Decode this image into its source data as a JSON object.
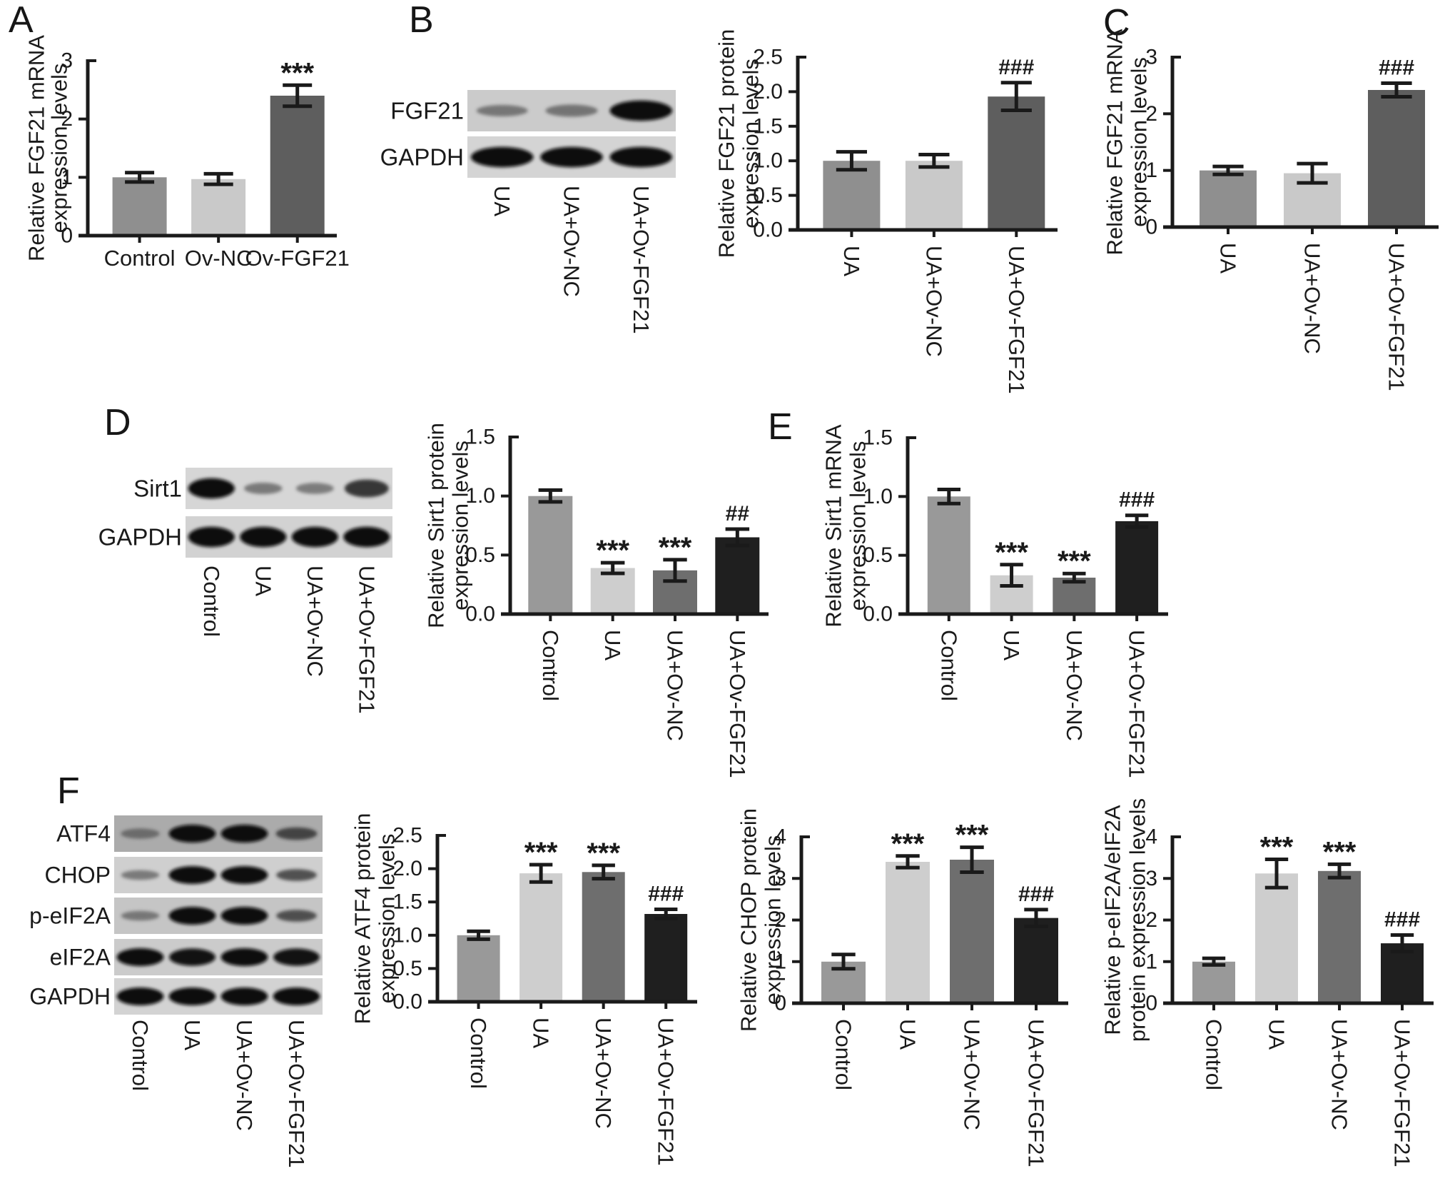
{
  "figure": {
    "background": "#ffffff",
    "ink_color": "#1a1a1a",
    "panels": [
      {
        "id": "A",
        "label": "A"
      },
      {
        "id": "B",
        "label": "B"
      },
      {
        "id": "C",
        "label": "C"
      },
      {
        "id": "D",
        "label": "D"
      },
      {
        "id": "E",
        "label": "E"
      },
      {
        "id": "F",
        "label": "F"
      }
    ]
  },
  "blots": [
    {
      "id": "blot-b",
      "panel": "B",
      "lanes": [
        "UA",
        "UA+Ov-NC",
        "UA+Ov-FGF21"
      ],
      "rows": [
        {
          "label": "FGF21",
          "bg": "#cbcbcb",
          "bands": [
            0.33,
            0.38,
            1.0
          ]
        },
        {
          "label": "GAPDH",
          "bg": "#d4d4d4",
          "bands": [
            1.0,
            1.0,
            1.0
          ]
        }
      ]
    },
    {
      "id": "blot-d",
      "panel": "D",
      "lanes": [
        "Control",
        "UA",
        "UA+Ov-NC",
        "UA+Ov-FGF21"
      ],
      "rows": [
        {
          "label": "Sirt1",
          "bg": "#d6d6d6",
          "bands": [
            1.0,
            0.33,
            0.3,
            0.8
          ]
        },
        {
          "label": "GAPDH",
          "bg": "#d2d2d2",
          "bands": [
            1.0,
            1.0,
            1.0,
            1.0
          ]
        }
      ]
    },
    {
      "id": "blot-f",
      "panel": "F",
      "lanes": [
        "Control",
        "UA",
        "UA+Ov-NC",
        "UA+Ov-FGF21"
      ],
      "rows": [
        {
          "label": "ATF4",
          "bg": "#ababab",
          "bands": [
            0.35,
            1.0,
            1.0,
            0.55
          ]
        },
        {
          "label": "CHOP",
          "bg": "#cfcfcf",
          "bands": [
            0.3,
            1.0,
            1.0,
            0.48
          ]
        },
        {
          "label": "p-eIF2A",
          "bg": "#c5c5c5",
          "bands": [
            0.3,
            1.0,
            1.0,
            0.48
          ]
        },
        {
          "label": "eIF2A",
          "bg": "#cbcbcb",
          "bands": [
            1.0,
            0.95,
            1.0,
            0.95
          ]
        },
        {
          "label": "GAPDH",
          "bg": "#d3d3d3",
          "bands": [
            1.0,
            1.0,
            1.0,
            1.0
          ]
        }
      ]
    }
  ],
  "chart_data": [
    {
      "id": "chart-a",
      "panel": "A",
      "type": "bar",
      "title": "",
      "xlabel": "",
      "grid": false,
      "legend": null,
      "ylabel_lines": [
        "Relative FGF21 mRNA",
        "expression levels"
      ],
      "categories": [
        "Control",
        "Ov-NC",
        "Ov-FGF21"
      ],
      "values": [
        1.0,
        0.97,
        2.4
      ],
      "errors": [
        0.08,
        0.09,
        0.18
      ],
      "sig": [
        "",
        "",
        "***"
      ],
      "bar_colors": [
        "#8f8f8f",
        "#c9c9c9",
        "#5e5e5e"
      ],
      "ylim": [
        0,
        3
      ],
      "yticks": [
        "0",
        "1",
        "2",
        "3"
      ],
      "x_labels_rotated": false
    },
    {
      "id": "chart-b",
      "panel": "B",
      "type": "bar",
      "title": "",
      "xlabel": "",
      "grid": false,
      "legend": null,
      "ylabel_lines": [
        "Relative FGF21 protein",
        "expression levels"
      ],
      "categories": [
        "UA",
        "UA+Ov-NC",
        "UA+Ov-FGF21"
      ],
      "values": [
        1.0,
        1.0,
        1.93
      ],
      "errors": [
        0.13,
        0.09,
        0.2
      ],
      "sig": [
        "",
        "",
        "###"
      ],
      "bar_colors": [
        "#8f8f8f",
        "#c9c9c9",
        "#5e5e5e"
      ],
      "ylim": [
        0,
        2.5
      ],
      "yticks": [
        "0.0",
        "0.5",
        "1.0",
        "1.5",
        "2.0",
        "2.5"
      ],
      "x_labels_rotated": true
    },
    {
      "id": "chart-c",
      "panel": "C",
      "type": "bar",
      "title": "",
      "xlabel": "",
      "grid": false,
      "legend": null,
      "ylabel_lines": [
        "Relative FGF21 mRNA",
        "expression levels"
      ],
      "categories": [
        "UA",
        "UA+Ov-NC",
        "UA+Ov-FGF21"
      ],
      "values": [
        1.0,
        0.95,
        2.42
      ],
      "errors": [
        0.07,
        0.17,
        0.12
      ],
      "sig": [
        "",
        "",
        "###"
      ],
      "bar_colors": [
        "#8f8f8f",
        "#c9c9c9",
        "#5e5e5e"
      ],
      "ylim": [
        0,
        3
      ],
      "yticks": [
        "0",
        "1",
        "2",
        "3"
      ],
      "x_labels_rotated": true
    },
    {
      "id": "chart-d",
      "panel": "D",
      "type": "bar",
      "title": "",
      "xlabel": "",
      "grid": false,
      "legend": null,
      "ylabel_lines": [
        "Relative Sirt1 protein",
        "expression levels"
      ],
      "categories": [
        "Control",
        "UA",
        "UA+Ov-NC",
        "UA+Ov-FGF21"
      ],
      "values": [
        1.0,
        0.39,
        0.37,
        0.65
      ],
      "errors": [
        0.05,
        0.045,
        0.09,
        0.07
      ],
      "sig": [
        "",
        "***",
        "***",
        "##"
      ],
      "bar_colors": [
        "#999999",
        "#cecece",
        "#6e6e6e",
        "#1f1f1f"
      ],
      "ylim": [
        0,
        1.5
      ],
      "yticks": [
        "0.0",
        "0.5",
        "1.0",
        "1.5"
      ],
      "x_labels_rotated": true
    },
    {
      "id": "chart-e",
      "panel": "E",
      "type": "bar",
      "title": "",
      "xlabel": "",
      "grid": false,
      "legend": null,
      "ylabel_lines": [
        "Relative Sirt1 mRNA",
        "expression levels"
      ],
      "categories": [
        "Control",
        "UA",
        "UA+Ov-NC",
        "UA+Ov-FGF21"
      ],
      "values": [
        1.0,
        0.33,
        0.31,
        0.79
      ],
      "errors": [
        0.06,
        0.09,
        0.035,
        0.05
      ],
      "sig": [
        "",
        "***",
        "***",
        "###"
      ],
      "bar_colors": [
        "#999999",
        "#cecece",
        "#6e6e6e",
        "#1f1f1f"
      ],
      "ylim": [
        0,
        1.5
      ],
      "yticks": [
        "0.0",
        "0.5",
        "1.0",
        "1.5"
      ],
      "x_labels_rotated": true
    },
    {
      "id": "chart-f1",
      "panel": "F",
      "type": "bar",
      "title": "",
      "xlabel": "",
      "grid": false,
      "legend": null,
      "ylabel_lines": [
        "Relative ATF4 protein",
        "expression levels"
      ],
      "categories": [
        "Control",
        "UA",
        "UA+Ov-NC",
        "UA+Ov-FGF21"
      ],
      "values": [
        1.0,
        1.93,
        1.95,
        1.32
      ],
      "errors": [
        0.06,
        0.13,
        0.1,
        0.07
      ],
      "sig": [
        "",
        "***",
        "***",
        "###"
      ],
      "bar_colors": [
        "#999999",
        "#cecece",
        "#6e6e6e",
        "#1f1f1f"
      ],
      "ylim": [
        0,
        2.5
      ],
      "yticks": [
        "0.0",
        "0.5",
        "1.0",
        "1.5",
        "2.0",
        "2.5"
      ],
      "x_labels_rotated": true
    },
    {
      "id": "chart-f2",
      "panel": "F",
      "type": "bar",
      "title": "",
      "xlabel": "",
      "grid": false,
      "legend": null,
      "ylabel_lines": [
        "Relative CHOP protein",
        "expression levels"
      ],
      "categories": [
        "Control",
        "UA",
        "UA+Ov-NC",
        "UA+Ov-FGF21"
      ],
      "values": [
        1.0,
        3.4,
        3.45,
        2.05
      ],
      "errors": [
        0.17,
        0.14,
        0.3,
        0.2
      ],
      "sig": [
        "",
        "***",
        "***",
        "###"
      ],
      "bar_colors": [
        "#999999",
        "#cecece",
        "#6e6e6e",
        "#1f1f1f"
      ],
      "ylim": [
        0,
        4
      ],
      "yticks": [
        "0",
        "1",
        "2",
        "3",
        "4"
      ],
      "x_labels_rotated": true
    },
    {
      "id": "chart-f3",
      "panel": "F",
      "type": "bar",
      "title": "",
      "xlabel": "",
      "grid": false,
      "legend": null,
      "ylabel_lines": [
        "Relative p-eIF2A/eIF2A",
        "protein expression levels"
      ],
      "categories": [
        "Control",
        "UA",
        "UA+Ov-NC",
        "UA+Ov-FGF21"
      ],
      "values": [
        1.0,
        3.12,
        3.18,
        1.44
      ],
      "errors": [
        0.08,
        0.34,
        0.16,
        0.2
      ],
      "sig": [
        "",
        "***",
        "***",
        "###"
      ],
      "bar_colors": [
        "#999999",
        "#cecece",
        "#6e6e6e",
        "#1f1f1f"
      ],
      "ylim": [
        0,
        4
      ],
      "yticks": [
        "0",
        "1",
        "2",
        "3",
        "4"
      ],
      "x_labels_rotated": true
    }
  ]
}
